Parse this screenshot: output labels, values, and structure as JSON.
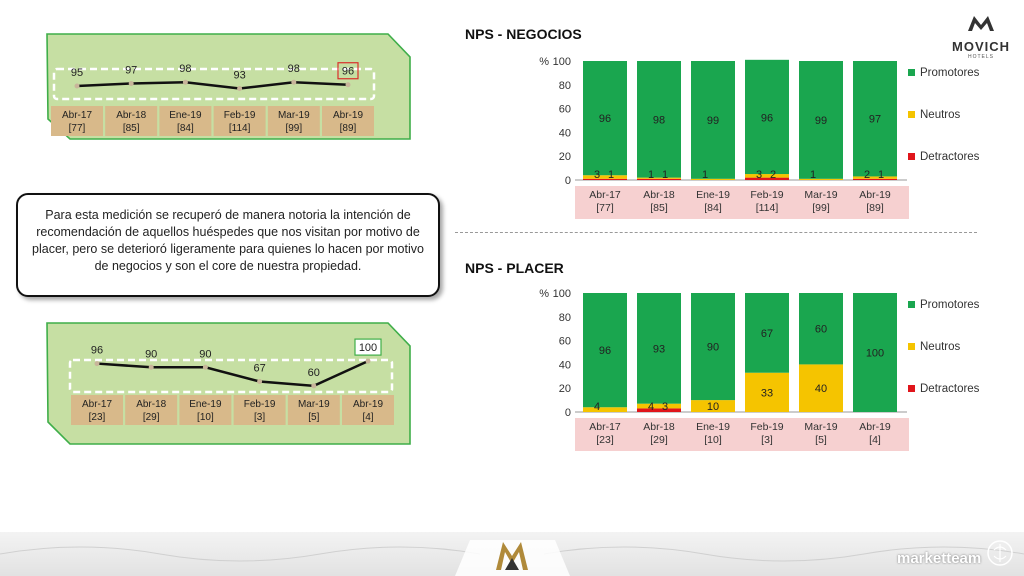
{
  "brand": {
    "name": "MOVICH",
    "sub": "HOTELS",
    "footer_brand": "marketteam"
  },
  "callout_text": "Para esta medición se recuperó de manera notoria la intención de recomendación de aquellos huéspedes que nos visitan por motivo de placer, pero se deterioró ligeramente para quienes lo hacen por motivo de negocios y son el core de nuestra propiedad.",
  "colors": {
    "promotores": "#1aa64f",
    "neutros": "#f5c400",
    "detractores": "#e0151b",
    "card_bg": "#c6dfa3",
    "card_border": "#3fae49",
    "label_bg": "#d8b98a",
    "axis_bg": "#f6d0d0"
  },
  "chart_data": [
    {
      "id": "negocios-trend",
      "type": "line",
      "categories": [
        "Abr-17",
        "Abr-18",
        "Ene-19",
        "Feb-19",
        "Mar-19",
        "Abr-19"
      ],
      "bases": [
        "[77]",
        "[85]",
        "[84]",
        "[114]",
        "[99]",
        "[89]"
      ],
      "values": [
        95,
        97,
        98,
        93,
        98,
        96
      ],
      "highlight_index": 5,
      "ylim": [
        80,
        110
      ]
    },
    {
      "id": "placer-trend",
      "type": "line",
      "categories": [
        "Abr-17",
        "Abr-18",
        "Ene-19",
        "Feb-19",
        "Mar-19",
        "Abr-19"
      ],
      "bases": [
        "[23]",
        "[29]",
        "[10]",
        "[3]",
        "[5]",
        "[4]"
      ],
      "values": [
        96,
        90,
        90,
        67,
        60,
        100
      ],
      "highlight_index": 5,
      "ylim": [
        50,
        105
      ]
    },
    {
      "id": "negocios-bars",
      "type": "bar",
      "title": "NPS - NEGOCIOS",
      "ylabel": "%",
      "ylim": [
        0,
        100
      ],
      "ticks": [
        0,
        20,
        40,
        60,
        80,
        100
      ],
      "categories": [
        "Abr-17",
        "Abr-18",
        "Ene-19",
        "Feb-19",
        "Mar-19",
        "Abr-19"
      ],
      "bases": [
        "[77]",
        "[85]",
        "[84]",
        "[114]",
        "[99]",
        "[89]"
      ],
      "legend": [
        "Promotores",
        "Neutros",
        "Detractores"
      ],
      "series": [
        {
          "name": "Detractores",
          "values": [
            1,
            1,
            0,
            2,
            0,
            1
          ],
          "labels": [
            "1",
            "1",
            "",
            "2",
            "",
            "1"
          ]
        },
        {
          "name": "Neutros",
          "values": [
            3,
            1,
            1,
            3,
            1,
            2
          ],
          "labels": [
            "3",
            "1",
            "1",
            "3",
            "1",
            "2"
          ]
        },
        {
          "name": "Promotores",
          "values": [
            96,
            98,
            99,
            96,
            99,
            97
          ],
          "labels": [
            "96",
            "98",
            "99",
            "96",
            "99",
            "97"
          ]
        }
      ]
    },
    {
      "id": "placer-bars",
      "type": "bar",
      "title": "NPS - PLACER",
      "ylabel": "%",
      "ylim": [
        0,
        100
      ],
      "ticks": [
        0,
        20,
        40,
        60,
        80,
        100
      ],
      "categories": [
        "Abr-17",
        "Abr-18",
        "Ene-19",
        "Feb-19",
        "Mar-19",
        "Abr-19"
      ],
      "bases": [
        "[23]",
        "[29]",
        "[10]",
        "[3]",
        "[5]",
        "[4]"
      ],
      "legend": [
        "Promotores",
        "Neutros",
        "Detractores"
      ],
      "series": [
        {
          "name": "Detractores",
          "values": [
            0,
            3,
            0,
            0,
            0,
            0
          ],
          "labels": [
            "",
            "3",
            "",
            "",
            "",
            ""
          ]
        },
        {
          "name": "Neutros",
          "values": [
            4,
            4,
            10,
            33,
            40,
            0
          ],
          "labels": [
            "4",
            "4",
            "10",
            "33",
            "40",
            ""
          ]
        },
        {
          "name": "Promotores",
          "values": [
            96,
            93,
            90,
            67,
            60,
            100
          ],
          "labels": [
            "96",
            "93",
            "90",
            "67",
            "60",
            "100"
          ]
        }
      ]
    }
  ]
}
